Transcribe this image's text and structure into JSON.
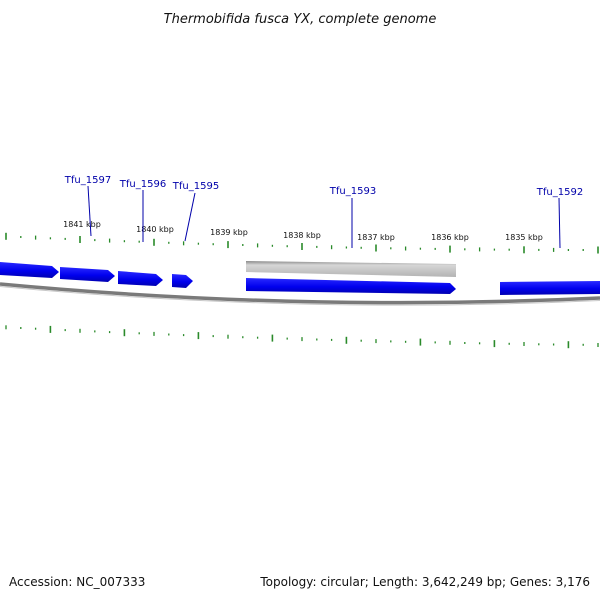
{
  "title": "Thermobifida fusca YX, complete genome",
  "footer": {
    "accession": "Accession: NC_007333",
    "summary": "Topology: circular; Length: 3,642,249 bp; Genes: 3,176"
  },
  "colors": {
    "gene_fill": "#0000ee",
    "gene_label": "#0000aa",
    "leader_line": "#0000aa",
    "tick": "#2a8a2a",
    "backbone": "#808080",
    "reverse_feature": "#bdbdbd"
  },
  "scale": {
    "unit": "kbp",
    "ticks": [
      {
        "kbp": 1841,
        "label": "1841 kbp"
      },
      {
        "kbp": 1840,
        "label": "1840 kbp"
      },
      {
        "kbp": 1839,
        "label": "1839 kbp"
      },
      {
        "kbp": 1838,
        "label": "1838 kbp"
      },
      {
        "kbp": 1837,
        "label": "1837 kbp"
      },
      {
        "kbp": 1836,
        "label": "1836 kbp"
      },
      {
        "kbp": 1835,
        "label": "1835 kbp"
      }
    ]
  },
  "gene_labels": [
    {
      "name": "Tfu_1597"
    },
    {
      "name": "Tfu_1596"
    },
    {
      "name": "Tfu_1595"
    },
    {
      "name": "Tfu_1593"
    },
    {
      "name": "Tfu_1592"
    }
  ]
}
